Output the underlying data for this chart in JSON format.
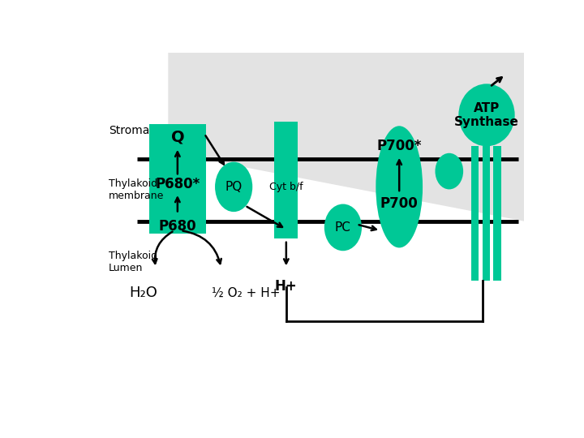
{
  "bg_color": "#ffffff",
  "teal": "#00c896",
  "black": "#000000",
  "stroma_label": "Stroma",
  "thylakoid_membrane_label": "Thylakoid\nmembrane",
  "thylakoid_lumen_label": "Thylakoid\nLumen",
  "atp_synthase_label": "ATP\nSynthase",
  "cytbf_label": "Cyt b/f",
  "p680star_label": "P680*",
  "p680_label": "P680",
  "q_label": "Q",
  "pq_label": "PQ",
  "p700star_label": "P700*",
  "p700_label": "P700",
  "pc_label": "PC",
  "h2o_label": "H₂O",
  "half_o2_label": "½ O₂ + H+",
  "hplus_label": "H+"
}
